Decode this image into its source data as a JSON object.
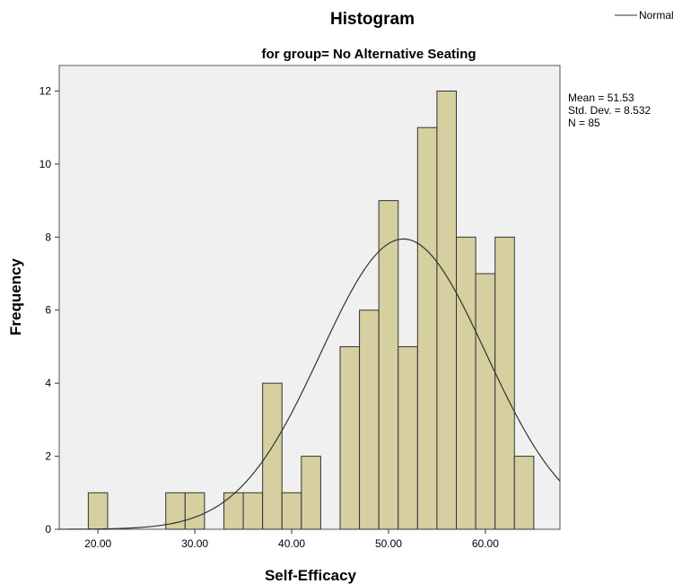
{
  "chart_data": {
    "type": "bar",
    "title": "Histogram",
    "subtitle": "for group= No Alternative Seating",
    "xlabel": "Self-Efficacy",
    "ylabel": "Frequency",
    "legend": {
      "label": "Normal",
      "placement": "top-right"
    },
    "stats": {
      "mean": "Mean = 51.53",
      "std": "Std. Dev. = 8.532",
      "n": "N = 85"
    },
    "xlim": [
      16.0,
      67.7
    ],
    "ylim": [
      0,
      12.7
    ],
    "bin_width": 2.0,
    "xticks": [
      {
        "value": 20,
        "label": "20.00"
      },
      {
        "value": 30,
        "label": "30.00"
      },
      {
        "value": 40,
        "label": "40.00"
      },
      {
        "value": 50,
        "label": "50.00"
      },
      {
        "value": 60,
        "label": "60.00"
      }
    ],
    "yticks": [
      {
        "value": 0,
        "label": "0"
      },
      {
        "value": 2,
        "label": "2"
      },
      {
        "value": 4,
        "label": "4"
      },
      {
        "value": 6,
        "label": "6"
      },
      {
        "value": 8,
        "label": "8"
      },
      {
        "value": 10,
        "label": "10"
      },
      {
        "value": 12,
        "label": "12"
      }
    ],
    "bins": [
      {
        "start": 19,
        "end": 21,
        "count": 1
      },
      {
        "start": 27,
        "end": 29,
        "count": 1
      },
      {
        "start": 29,
        "end": 31,
        "count": 1
      },
      {
        "start": 33,
        "end": 35,
        "count": 1
      },
      {
        "start": 35,
        "end": 37,
        "count": 1
      },
      {
        "start": 37,
        "end": 39,
        "count": 4
      },
      {
        "start": 39,
        "end": 41,
        "count": 1
      },
      {
        "start": 41,
        "end": 43,
        "count": 2
      },
      {
        "start": 45,
        "end": 47,
        "count": 5
      },
      {
        "start": 47,
        "end": 49,
        "count": 6
      },
      {
        "start": 49,
        "end": 51,
        "count": 9
      },
      {
        "start": 51,
        "end": 53,
        "count": 5
      },
      {
        "start": 53,
        "end": 55,
        "count": 11
      },
      {
        "start": 55,
        "end": 57,
        "count": 12
      },
      {
        "start": 57,
        "end": 59,
        "count": 8
      },
      {
        "start": 59,
        "end": 61,
        "count": 7
      },
      {
        "start": 61,
        "end": 63,
        "count": 8
      },
      {
        "start": 63,
        "end": 65,
        "count": 2
      }
    ],
    "normal_curve": {
      "mean": 51.53,
      "sd": 8.532,
      "n": 85
    },
    "colors": {
      "bar_fill": "#d6cfa0",
      "bar_stroke": "#333333",
      "plot_background": "#f0f0f0",
      "curve": "#333333"
    }
  }
}
